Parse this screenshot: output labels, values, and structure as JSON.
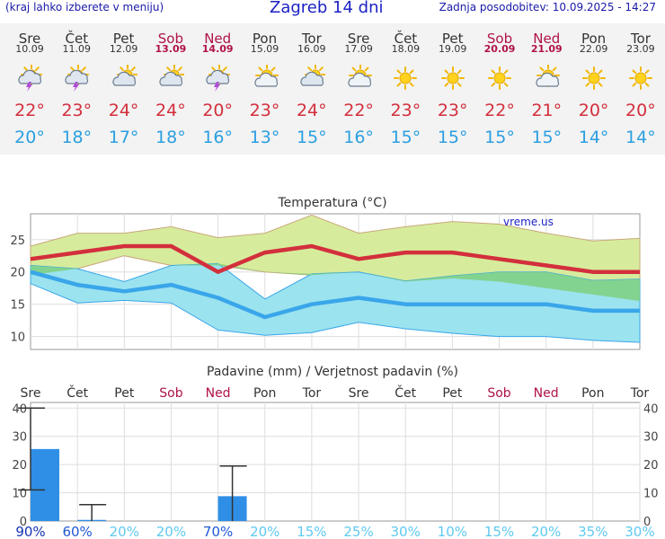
{
  "header": {
    "left_note": "(kraj lahko izberete v meniju)",
    "title": "Zagreb 14 dni",
    "updated": "Zadnja posodobitev: 10.09.2025 - 14:27"
  },
  "days": [
    {
      "name": "Sre",
      "date": "10.09",
      "icon": "thunderstorm-icon",
      "max": "22°",
      "min": "20°",
      "weekend": false
    },
    {
      "name": "Čet",
      "date": "11.09",
      "icon": "thunderstorm-icon",
      "max": "23°",
      "min": "18°",
      "weekend": false
    },
    {
      "name": "Pet",
      "date": "12.09",
      "icon": "cloudy-sun-icon",
      "max": "24°",
      "min": "17°",
      "weekend": false
    },
    {
      "name": "Sob",
      "date": "13.09",
      "icon": "cloudy-sun-icon",
      "max": "24°",
      "min": "18°",
      "weekend": true
    },
    {
      "name": "Ned",
      "date": "14.09",
      "icon": "thunderstorm-icon",
      "max": "20°",
      "min": "16°",
      "weekend": true
    },
    {
      "name": "Pon",
      "date": "15.09",
      "icon": "partly-cloudy-icon",
      "max": "23°",
      "min": "13°",
      "weekend": false
    },
    {
      "name": "Tor",
      "date": "16.09",
      "icon": "cloudy-sun-icon",
      "max": "24°",
      "min": "15°",
      "weekend": false
    },
    {
      "name": "Sre",
      "date": "17.09",
      "icon": "partly-cloudy-icon",
      "max": "22°",
      "min": "16°",
      "weekend": false
    },
    {
      "name": "Čet",
      "date": "18.09",
      "icon": "sun-icon",
      "max": "23°",
      "min": "15°",
      "weekend": false
    },
    {
      "name": "Pet",
      "date": "19.09",
      "icon": "sun-icon",
      "max": "23°",
      "min": "15°",
      "weekend": false
    },
    {
      "name": "Sob",
      "date": "20.09",
      "icon": "sun-icon",
      "max": "22°",
      "min": "15°",
      "weekend": true
    },
    {
      "name": "Ned",
      "date": "21.09",
      "icon": "partly-cloudy-icon",
      "max": "21°",
      "min": "15°",
      "weekend": true
    },
    {
      "name": "Pon",
      "date": "22.09",
      "icon": "sun-icon",
      "max": "20°",
      "min": "14°",
      "weekend": false
    },
    {
      "name": "Tor",
      "date": "23.09",
      "icon": "sun-icon",
      "max": "20°",
      "min": "14°",
      "weekend": false
    }
  ],
  "colors": {
    "weekend": "#b0124a",
    "max_line": "#d32f3c",
    "min_line": "#3aa6ea",
    "max_band": "#d6ec9c",
    "min_band": "#9be3ef",
    "overlap_band": "#7fd07f",
    "precip_bar": "#2f8fe6"
  },
  "chart_data": [
    {
      "type": "line",
      "title": "Temperatura (°C)",
      "watermark": "vreme.us",
      "ylim": [
        8,
        29
      ],
      "yticks": [
        10,
        15,
        20,
        25
      ],
      "series": [
        {
          "values": [
            22,
            23,
            24,
            24,
            20,
            23,
            24,
            22,
            23,
            23,
            22,
            21,
            20,
            20
          ]
        },
        {
          "values": [
            20,
            18,
            17,
            18,
            16,
            13,
            15,
            16,
            15,
            15,
            15,
            15,
            14,
            14
          ]
        }
      ],
      "max_band_high": [
        24,
        26,
        26,
        27,
        25.3,
        26,
        28.8,
        26,
        27,
        27.8,
        27.4,
        26,
        24.8,
        25.2
      ],
      "max_band_low": [
        19.5,
        20.5,
        22.5,
        21,
        21,
        20,
        19.5,
        20,
        18.5,
        19,
        18.5,
        17.5,
        16.5,
        15.5
      ],
      "min_band_high": [
        21,
        20.5,
        18.5,
        21,
        21.3,
        15.8,
        19.7,
        20,
        18.6,
        19.4,
        20,
        20,
        18.7,
        18.9
      ],
      "min_band_low": [
        18.2,
        15.2,
        15.6,
        15.2,
        11,
        10.2,
        10.6,
        12.2,
        11.2,
        10.5,
        10,
        10,
        9.4,
        9.1
      ]
    },
    {
      "type": "bar",
      "title": "Padavine (mm) / Verjetnost padavin (%)",
      "ylim": [
        0,
        42
      ],
      "yticks": [
        0,
        10,
        20,
        30,
        40
      ],
      "categories": [
        "Sre",
        "Čet",
        "Pet",
        "Sob",
        "Ned",
        "Pon",
        "Tor",
        "Sre",
        "Čet",
        "Pet",
        "Sob",
        "Ned",
        "Pon",
        "Tor"
      ],
      "values": [
        25.5,
        0.4,
        0,
        0,
        8.8,
        0,
        0,
        0,
        0,
        0,
        0,
        0,
        0,
        0
      ],
      "error_high": [
        40,
        5.8,
        0,
        0,
        19.5,
        0,
        0,
        0,
        0,
        0,
        0,
        0,
        0,
        0
      ],
      "error_low": [
        11,
        0,
        0,
        0,
        0,
        0,
        0,
        0,
        0,
        0,
        0,
        0,
        0,
        0
      ],
      "probability": [
        "90%",
        "60%",
        "20%",
        "20%",
        "70%",
        "20%",
        "15%",
        "25%",
        "30%",
        "10%",
        "15%",
        "20%",
        "35%",
        "30%"
      ]
    }
  ]
}
